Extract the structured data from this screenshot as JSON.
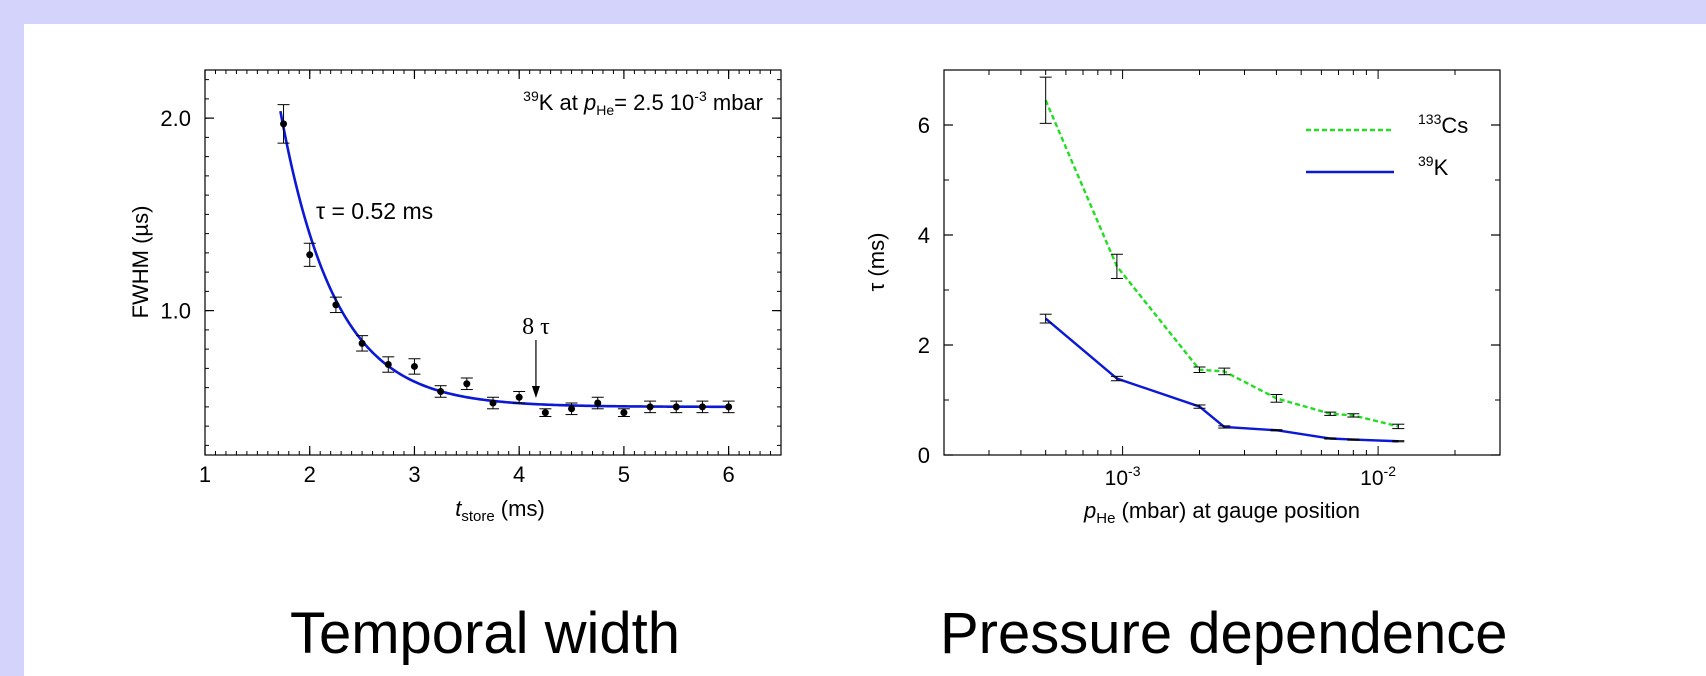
{
  "colors": {
    "band": "#d3d3fb",
    "fit_line": "#0b18d6",
    "cs_line": "#22dd22",
    "k_line": "#0b18d6",
    "points": "#000000"
  },
  "captions": {
    "left": "Temporal width",
    "right": "Pressure dependence"
  },
  "chart_data": [
    {
      "type": "scatter",
      "title": "",
      "xlabel": {
        "main": "t",
        "sub": "store",
        "rest": " (ms)"
      },
      "ylabel": "FWHM (µs)",
      "xlim": [
        1,
        6.5
      ],
      "ylim": [
        0.25,
        2.25
      ],
      "x_ticks": [
        1,
        2,
        3,
        4,
        5,
        6
      ],
      "y_ticks": [
        {
          "value": 2.0,
          "label": "2.0"
        },
        {
          "value": 1.0,
          "label": "1.0"
        }
      ],
      "grid": false,
      "annotations": {
        "species": {
          "mass": "39",
          "element": "K at ",
          "p": "p",
          "sub": "He",
          "eq": "= 2.5 10",
          "exp": "-3",
          "unit": " mbar"
        },
        "tau": "τ = 0.52 ms",
        "arrow": "8 τ",
        "arrow_x": 4.16
      },
      "series": [
        {
          "x": [
            1.75,
            2.0,
            2.25,
            2.5,
            2.75,
            3.0,
            3.25,
            3.5,
            3.75,
            4.0,
            4.25,
            4.5,
            4.75,
            5.0,
            5.25,
            5.5,
            5.75,
            6.0
          ],
          "values": [
            1.97,
            1.29,
            1.03,
            0.83,
            0.72,
            0.71,
            0.58,
            0.62,
            0.52,
            0.55,
            0.47,
            0.49,
            0.52,
            0.47,
            0.5,
            0.5,
            0.5,
            0.5
          ],
          "errors": [
            0.1,
            0.06,
            0.04,
            0.04,
            0.04,
            0.04,
            0.03,
            0.03,
            0.03,
            0.03,
            0.02,
            0.03,
            0.03,
            0.02,
            0.03,
            0.03,
            0.03,
            0.03
          ]
        }
      ],
      "fit": {
        "model": "exponential decay",
        "tau": 0.52,
        "offset": 0.5,
        "amplitude": 1.45,
        "x0": 1.75,
        "x_range": [
          1.72,
          6.0
        ]
      }
    },
    {
      "type": "line",
      "title": "",
      "xlabel": {
        "main": "p",
        "sub": "He",
        "rest": " (mbar) at gauge position"
      },
      "ylabel": "τ (ms)",
      "xscale": "log",
      "xlim": [
        0.0002,
        0.03
      ],
      "ylim": [
        0,
        7
      ],
      "x_ticks": [
        {
          "value": 0.001,
          "base": "10",
          "exp": "-3"
        },
        {
          "value": 0.01,
          "base": "10",
          "exp": "-2"
        }
      ],
      "y_ticks": [
        0,
        2,
        4,
        6
      ],
      "legend": "top-right",
      "grid": false,
      "series": [
        {
          "name": {
            "mass": "133",
            "element": "Cs"
          },
          "style": "dashed",
          "x": [
            0.0005,
            0.00095,
            0.002,
            0.0025,
            0.004,
            0.0065,
            0.008,
            0.012
          ],
          "values": [
            6.45,
            3.43,
            1.55,
            1.52,
            1.03,
            0.75,
            0.72,
            0.52
          ],
          "errors": [
            0.42,
            0.22,
            0.05,
            0.06,
            0.07,
            0.03,
            0.03,
            0.04
          ]
        },
        {
          "name": {
            "mass": "39",
            "element": "K"
          },
          "style": "solid",
          "x": [
            0.0005,
            0.00095,
            0.002,
            0.0025,
            0.004,
            0.0065,
            0.008,
            0.012
          ],
          "values": [
            2.48,
            1.39,
            0.88,
            0.51,
            0.45,
            0.3,
            0.28,
            0.25
          ],
          "errors": [
            0.08,
            0.04,
            0.03,
            0.02,
            0.01,
            0.01,
            0.01,
            0.01
          ]
        }
      ]
    }
  ]
}
